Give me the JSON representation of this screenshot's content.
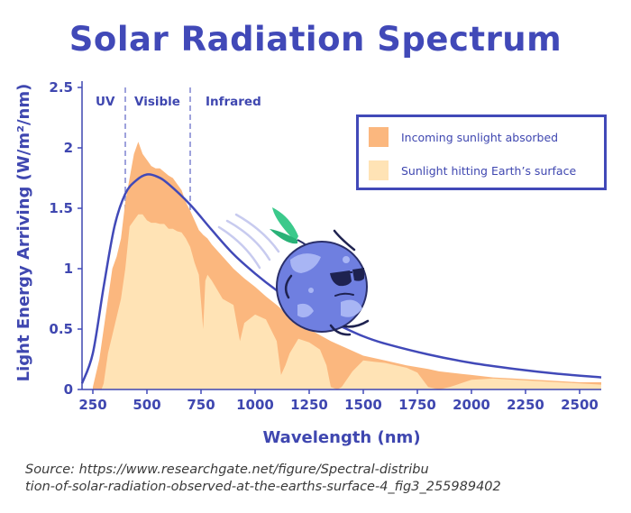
{
  "title": "Solar Radiation Spectrum",
  "source": {
    "line1": "Source: https://www.researchgate.net/figure/Spectral-distribu",
    "line2": "tion-of-solar-radiation-observed-at-the-earths-surface-4_fig3_255989402"
  },
  "colors": {
    "accent": "#4149b8",
    "absorbed": "#fbb77e",
    "surface": "#ffe3b5",
    "band_divider": "#9ea2dc"
  },
  "chart_data": {
    "type": "area",
    "title": "Solar Radiation Spectrum",
    "xlabel": "Wavelength (nm)",
    "ylabel": "Light Energy Arriving (W/m²/nm)",
    "xlim": [
      200,
      2600
    ],
    "ylim": [
      0,
      2.5
    ],
    "x_ticks": [
      250,
      500,
      750,
      1000,
      1250,
      1500,
      1750,
      2000,
      2250,
      2500
    ],
    "y_ticks": [
      0,
      0.5,
      1,
      1.5,
      2,
      2.5
    ],
    "y_tick_labels": [
      "0",
      "0.5",
      "1",
      "1.5",
      "2",
      "2.5"
    ],
    "grid": false,
    "legend_position": "top-right",
    "bands": [
      {
        "label": "UV",
        "range": [
          200,
          400
        ]
      },
      {
        "label": "Visible",
        "range": [
          400,
          700
        ]
      },
      {
        "label": "Infrared",
        "range": [
          700,
          2600
        ]
      }
    ],
    "band_boundaries": [
      400,
      700
    ],
    "series": [
      {
        "name": "Incoming sunlight absorbed",
        "kind": "area",
        "x": [
          250,
          280,
          300,
          320,
          340,
          360,
          380,
          400,
          420,
          440,
          460,
          480,
          500,
          520,
          540,
          560,
          580,
          600,
          620,
          640,
          660,
          680,
          700,
          720,
          740,
          760,
          780,
          800,
          850,
          900,
          950,
          1000,
          1050,
          1100,
          1150,
          1200,
          1250,
          1300,
          1350,
          1400,
          1450,
          1500,
          1600,
          1700,
          1800,
          1850,
          1900,
          1950,
          2000,
          2100,
          2200,
          2300,
          2400,
          2500,
          2600
        ],
        "y": [
          0.02,
          0.25,
          0.5,
          0.75,
          1.0,
          1.1,
          1.25,
          1.55,
          1.75,
          1.95,
          2.05,
          1.95,
          1.9,
          1.85,
          1.83,
          1.83,
          1.8,
          1.77,
          1.75,
          1.7,
          1.65,
          1.55,
          1.48,
          1.4,
          1.32,
          1.28,
          1.25,
          1.2,
          1.1,
          1.0,
          0.92,
          0.85,
          0.77,
          0.7,
          0.62,
          0.55,
          0.5,
          0.45,
          0.4,
          0.36,
          0.32,
          0.28,
          0.24,
          0.2,
          0.17,
          0.15,
          0.14,
          0.13,
          0.12,
          0.1,
          0.09,
          0.08,
          0.07,
          0.06,
          0.06
        ]
      },
      {
        "name": "Sunlight hitting Earth’s surface",
        "kind": "area",
        "x": [
          250,
          290,
          300,
          320,
          340,
          360,
          380,
          400,
          420,
          440,
          460,
          480,
          500,
          520,
          540,
          560,
          580,
          600,
          620,
          640,
          660,
          680,
          700,
          720,
          740,
          760,
          770,
          780,
          800,
          850,
          900,
          930,
          950,
          1000,
          1050,
          1100,
          1120,
          1140,
          1160,
          1200,
          1250,
          1300,
          1330,
          1350,
          1380,
          1400,
          1450,
          1500,
          1550,
          1600,
          1650,
          1700,
          1750,
          1800,
          1850,
          1900,
          1950,
          2000,
          2100,
          2200,
          2300,
          2400,
          2500,
          2600
        ],
        "y": [
          0,
          0,
          0.05,
          0.3,
          0.45,
          0.6,
          0.75,
          1.0,
          1.35,
          1.4,
          1.45,
          1.45,
          1.4,
          1.38,
          1.38,
          1.37,
          1.37,
          1.33,
          1.33,
          1.31,
          1.3,
          1.25,
          1.18,
          1.05,
          0.95,
          0.5,
          0.9,
          0.95,
          0.9,
          0.75,
          0.7,
          0.4,
          0.55,
          0.62,
          0.58,
          0.4,
          0.12,
          0.2,
          0.3,
          0.42,
          0.39,
          0.33,
          0.2,
          0.02,
          0.0,
          0.02,
          0.15,
          0.24,
          0.23,
          0.22,
          0.2,
          0.18,
          0.14,
          0.02,
          0.0,
          0.02,
          0.05,
          0.08,
          0.09,
          0.08,
          0.07,
          0.06,
          0.05,
          0.04
        ]
      },
      {
        "name": "",
        "kind": "line",
        "x": [
          200,
          250,
          300,
          350,
          400,
          450,
          500,
          550,
          600,
          700,
          800,
          900,
          1000,
          1100,
          1200,
          1300,
          1400,
          1500,
          1600,
          1800,
          2000,
          2200,
          2400,
          2600
        ],
        "y": [
          0.05,
          0.3,
          0.85,
          1.35,
          1.62,
          1.73,
          1.78,
          1.76,
          1.7,
          1.53,
          1.32,
          1.12,
          0.96,
          0.82,
          0.7,
          0.6,
          0.52,
          0.44,
          0.38,
          0.29,
          0.22,
          0.17,
          0.13,
          0.1
        ]
      }
    ]
  }
}
